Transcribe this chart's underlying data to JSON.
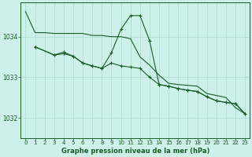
{
  "background_color": "#cdf0e8",
  "grid_color": "#b0ddd0",
  "line_color": "#1a5c2a",
  "ylim": [
    1031.5,
    1034.85
  ],
  "xlim": [
    -0.5,
    23.5
  ],
  "yticks": [
    1032,
    1033,
    1034
  ],
  "xticks": [
    0,
    1,
    2,
    3,
    4,
    5,
    6,
    7,
    8,
    9,
    10,
    11,
    12,
    13,
    14,
    15,
    16,
    17,
    18,
    19,
    20,
    21,
    22,
    23
  ],
  "xlabel": "Graphe pression niveau de la mer (hPa)",
  "line1_x": [
    0,
    1,
    2,
    3,
    4,
    5,
    6,
    7,
    8,
    9,
    10,
    11,
    12,
    13,
    14,
    15,
    16,
    17,
    18,
    19,
    20,
    21,
    22,
    23
  ],
  "line1_y": [
    1034.62,
    1034.1,
    1034.1,
    1034.08,
    1034.08,
    1034.08,
    1034.08,
    1034.03,
    1034.03,
    1034.0,
    1034.0,
    1033.95,
    1033.5,
    1033.3,
    1033.05,
    1032.85,
    1032.82,
    1032.8,
    1032.78,
    1032.6,
    1032.55,
    1032.5,
    1032.25,
    1032.1
  ],
  "line2_x": [
    1,
    3,
    4,
    5,
    6,
    7,
    8,
    9,
    10,
    11,
    12,
    13,
    14,
    15,
    16,
    17,
    18,
    19,
    20,
    21,
    22,
    23
  ],
  "line2_y": [
    1033.75,
    1033.55,
    1033.58,
    1033.52,
    1033.35,
    1033.28,
    1033.22,
    1033.35,
    1033.28,
    1033.25,
    1033.22,
    1033.0,
    1032.82,
    1032.78,
    1032.72,
    1032.68,
    1032.65,
    1032.52,
    1032.42,
    1032.38,
    1032.35,
    1032.1
  ],
  "line3_x": [
    1,
    3,
    4,
    5,
    6,
    7,
    8,
    9,
    10,
    11,
    12,
    13,
    14,
    15,
    16,
    17,
    18,
    19,
    20,
    21,
    22,
    23
  ],
  "line3_y": [
    1033.75,
    1033.55,
    1033.62,
    1033.52,
    1033.35,
    1033.28,
    1033.22,
    1033.6,
    1034.18,
    1034.52,
    1034.52,
    1033.9,
    1032.82,
    1032.78,
    1032.72,
    1032.68,
    1032.65,
    1032.52,
    1032.42,
    1032.38,
    1032.35,
    1032.1
  ]
}
